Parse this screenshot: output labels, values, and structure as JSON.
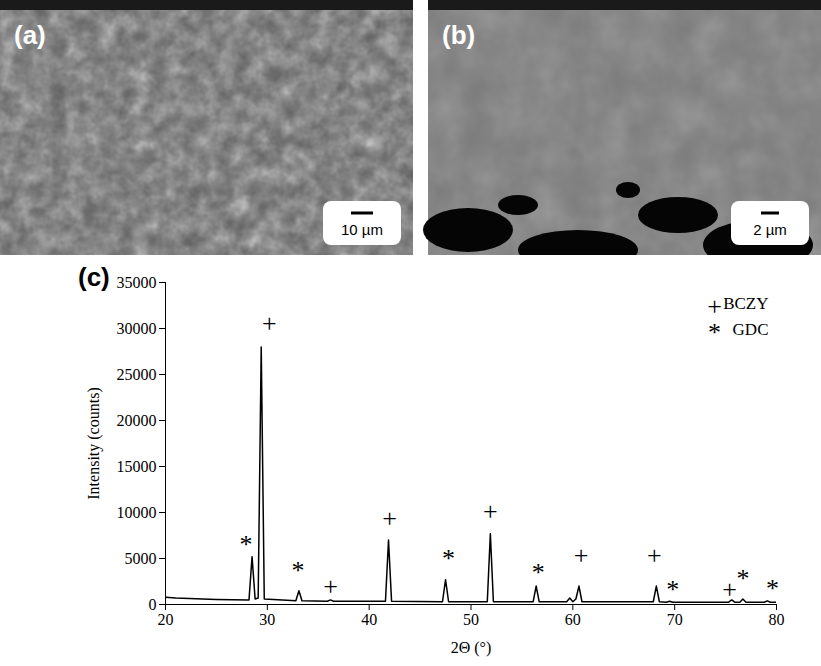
{
  "panels": [
    {
      "label": "(a)",
      "scale_bar": "10 µm"
    },
    {
      "label": "(b)",
      "scale_bar": "2 µm"
    }
  ],
  "chart_data": {
    "type": "line",
    "panel_label": "(c)",
    "x_label": "2Θ (°)",
    "y_label": "Intensity (counts)",
    "x": [
      20,
      21,
      25,
      28.2,
      28.5,
      28.8,
      29.1,
      29.4,
      29.7,
      32.8,
      33.1,
      33.4,
      35.9,
      36.2,
      36.5,
      41.6,
      41.9,
      42.2,
      47.2,
      47.5,
      47.8,
      51.6,
      51.9,
      52.2,
      56.1,
      56.4,
      56.7,
      59.4,
      59.7,
      60.0,
      60.3,
      60.6,
      60.9,
      67.9,
      68.2,
      68.5,
      69.2,
      69.5,
      69.8,
      75.3,
      75.6,
      75.9,
      76.4,
      76.7,
      77.0,
      78.8,
      79.1,
      79.4,
      80
    ],
    "values": [
      800,
      700,
      550,
      500,
      5200,
      600,
      700,
      28000,
      600,
      400,
      1500,
      400,
      350,
      500,
      350,
      350,
      7000,
      350,
      300,
      2700,
      300,
      300,
      7700,
      300,
      300,
      2000,
      300,
      300,
      700,
      300,
      600,
      2000,
      300,
      300,
      2000,
      300,
      250,
      350,
      250,
      250,
      500,
      250,
      250,
      600,
      250,
      250,
      400,
      250,
      250
    ],
    "color": "#000000",
    "xlim": [
      20,
      80
    ],
    "xticks": [
      20,
      30,
      40,
      50,
      60,
      70,
      80
    ],
    "ylim": [
      0,
      35000
    ],
    "yticks": [
      0,
      5000,
      10000,
      15000,
      20000,
      25000,
      30000,
      35000
    ],
    "legend": "top-right",
    "peak_marks": [
      {
        "name": "BCZY",
        "symbol": "+",
        "x": [
          30.2,
          36.2,
          42.0,
          51.9,
          60.8,
          68.0,
          75.4
        ],
        "y": [
          30500,
          1900,
          9300,
          10100,
          5300,
          5300,
          1600
        ]
      },
      {
        "name": "GDC",
        "symbol": "*",
        "x": [
          27.9,
          33.0,
          47.8,
          56.6,
          69.8,
          76.7,
          79.6
        ],
        "y": [
          6500,
          3700,
          5000,
          3500,
          1600,
          2800,
          1700
        ]
      }
    ]
  }
}
